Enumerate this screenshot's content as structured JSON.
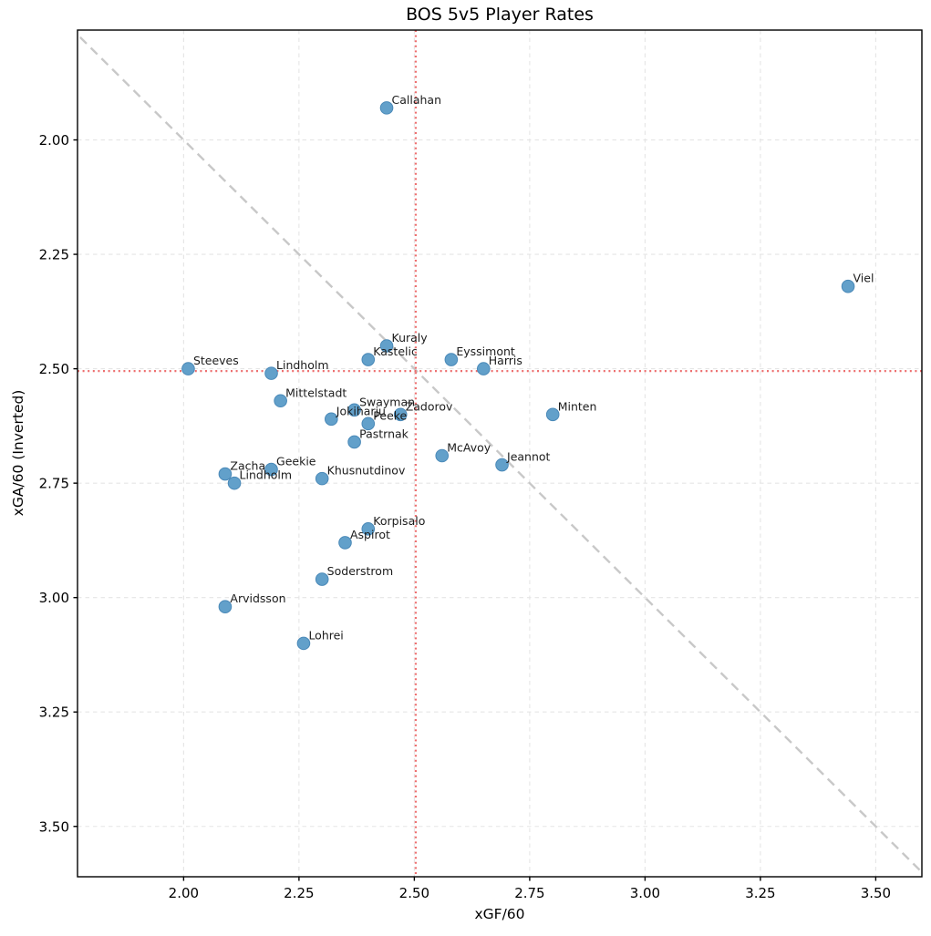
{
  "chart_data": {
    "type": "scatter",
    "title": "BOS 5v5 Player Rates",
    "xlabel": "xGF/60",
    "ylabel": "xGA/60 (Inverted)",
    "xlim": [
      1.77,
      3.6
    ],
    "ylim": [
      1.76,
      3.61
    ],
    "y_axis_inverted": true,
    "x_ticks": [
      2.0,
      2.25,
      2.5,
      2.75,
      3.0,
      3.25,
      3.5
    ],
    "y_ticks": [
      2.0,
      2.25,
      2.5,
      2.75,
      3.0,
      3.25,
      3.5
    ],
    "grid": true,
    "legend": "none",
    "reference_lines": {
      "crosshair_x": 2.503,
      "crosshair_y": 2.505,
      "diagonal": "y = x"
    },
    "points": [
      {
        "name": "Callahan",
        "x": 2.44,
        "y": 1.93
      },
      {
        "name": "Viel",
        "x": 3.44,
        "y": 2.32
      },
      {
        "name": "Kuraly",
        "x": 2.44,
        "y": 2.45
      },
      {
        "name": "Kastelic",
        "x": 2.4,
        "y": 2.48
      },
      {
        "name": "Eyssimont",
        "x": 2.58,
        "y": 2.48
      },
      {
        "name": "Harris",
        "x": 2.65,
        "y": 2.5
      },
      {
        "name": "Steeves",
        "x": 2.01,
        "y": 2.5
      },
      {
        "name": "Lindholm",
        "x": 2.19,
        "y": 2.51
      },
      {
        "name": "Mittelstadt",
        "x": 2.21,
        "y": 2.57
      },
      {
        "name": "Swayman",
        "x": 2.37,
        "y": 2.59
      },
      {
        "name": "Zadorov",
        "x": 2.47,
        "y": 2.6
      },
      {
        "name": "Minten",
        "x": 2.8,
        "y": 2.6
      },
      {
        "name": "Jokiharju",
        "x": 2.32,
        "y": 2.61
      },
      {
        "name": "Peeke",
        "x": 2.4,
        "y": 2.62
      },
      {
        "name": "Pastrnak",
        "x": 2.37,
        "y": 2.66
      },
      {
        "name": "McAvoy",
        "x": 2.56,
        "y": 2.69
      },
      {
        "name": "Jeannot",
        "x": 2.69,
        "y": 2.71
      },
      {
        "name": "Geekie",
        "x": 2.19,
        "y": 2.72
      },
      {
        "name": "Zacha",
        "x": 2.09,
        "y": 2.73
      },
      {
        "name": "Khusnutdinov",
        "x": 2.3,
        "y": 2.74
      },
      {
        "name": "Lindholm",
        "x": 2.11,
        "y": 2.75
      },
      {
        "name": "Korpisalo",
        "x": 2.4,
        "y": 2.85
      },
      {
        "name": "Aspirot",
        "x": 2.35,
        "y": 2.88
      },
      {
        "name": "Soderstrom",
        "x": 2.3,
        "y": 2.96
      },
      {
        "name": "Arvidsson",
        "x": 2.09,
        "y": 3.02
      },
      {
        "name": "Lohrei",
        "x": 2.26,
        "y": 3.1
      }
    ],
    "style": {
      "marker_fill": "#62a0ca",
      "marker_edge": "#4a89b8",
      "crosshair_color": "#ed7070",
      "diagonal_color": "#c8c8c8",
      "grid_color": "#e5e5e5",
      "spine_color": "#000000",
      "label_color": "#1c1c1c",
      "tick_label_color": "#000000"
    }
  }
}
